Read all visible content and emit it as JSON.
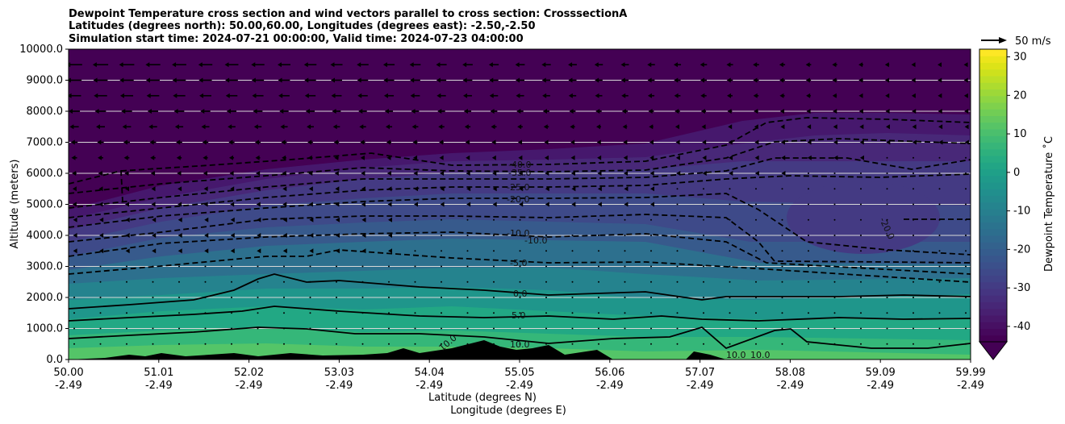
{
  "chart_data": {
    "type": "contour",
    "title_lines": [
      "Dewpoint Temperature cross section and wind vectors parallel to cross section: CrosssectionA",
      "Latitudes (degrees north): 50.00,60.00, Longitudes (degrees east): -2.50,-2.50",
      "Simulation start time: 2024-07-21 00:00:00, Valid time: 2024-07-23 04:00:00"
    ],
    "ylabel": "Altitude (meters)",
    "xlabel_lines": [
      "Latitude (degrees N)",
      "Longitude (degrees E)"
    ],
    "ylim": [
      0,
      10000
    ],
    "xlim": [
      50.0,
      59.99
    ],
    "y_ticks": [
      "0.0",
      "1000.0",
      "2000.0",
      "3000.0",
      "4000.0",
      "5000.0",
      "6000.0",
      "7000.0",
      "8000.0",
      "9000.0",
      "10000.0"
    ],
    "x_ticks": [
      {
        "lat": "50.00",
        "lon": "-2.49"
      },
      {
        "lat": "51.01",
        "lon": "-2.49"
      },
      {
        "lat": "52.02",
        "lon": "-2.49"
      },
      {
        "lat": "53.03",
        "lon": "-2.49"
      },
      {
        "lat": "54.04",
        "lon": "-2.49"
      },
      {
        "lat": "55.05",
        "lon": "-2.49"
      },
      {
        "lat": "56.06",
        "lon": "-2.49"
      },
      {
        "lat": "57.07",
        "lon": "-2.49"
      },
      {
        "lat": "58.08",
        "lon": "-2.49"
      },
      {
        "lat": "59.09",
        "lon": "-2.49"
      },
      {
        "lat": "59.99",
        "lon": "-2.49"
      }
    ],
    "colorbar": {
      "label": "Dewpoint Temperature ˚C",
      "min": -44,
      "max": 32,
      "ticks": [
        "-40",
        "-30",
        "-20",
        "-10",
        "0",
        "10",
        "20",
        "30"
      ],
      "colormap": "viridis",
      "extend": "min"
    },
    "contour_labels": [
      "-40.0",
      "-35.0",
      "-25.0",
      "-20.0",
      "-10.0",
      "-10.0",
      "-5.0",
      "0.0",
      "5.0",
      "10.0",
      "-20.0",
      "10.0",
      "10.0",
      "10.0"
    ],
    "quiver_key": {
      "label": "50 m/s",
      "value": 50
    },
    "wind_profile": [
      {
        "alt": 9500,
        "u": -14
      },
      {
        "alt": 9000,
        "u": -13
      },
      {
        "alt": 8500,
        "u": -12
      },
      {
        "alt": 8000,
        "u": -10
      },
      {
        "alt": 7500,
        "u": -8
      },
      {
        "alt": 7000,
        "u": -6
      },
      {
        "alt": 6500,
        "u": -5
      },
      {
        "alt": 6000,
        "u": -4
      },
      {
        "alt": 5500,
        "u": -3
      },
      {
        "alt": 5000,
        "u": -3
      },
      {
        "alt": 4500,
        "u": -2
      },
      {
        "alt": 4000,
        "u": -2
      },
      {
        "alt": 3500,
        "u": -2
      },
      {
        "alt": 3000,
        "u": -1
      },
      {
        "alt": 2500,
        "u": -1
      },
      {
        "alt": 2000,
        "u": -1
      },
      {
        "alt": 1500,
        "u": -1
      },
      {
        "alt": 1000,
        "u": -1
      },
      {
        "alt": 500,
        "u": -1
      }
    ]
  }
}
